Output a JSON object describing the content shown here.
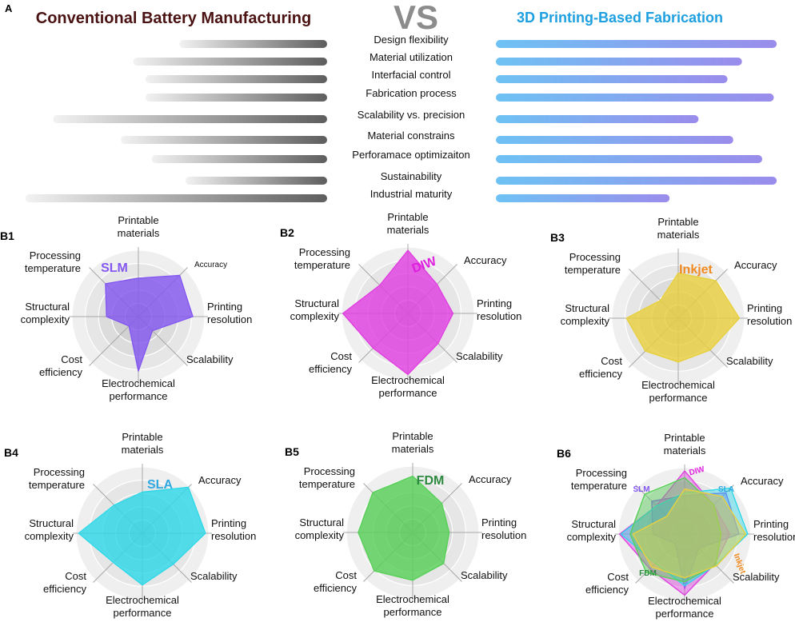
{
  "colors": {
    "left_title": "#4a1212",
    "vs": "#8c8c8c",
    "right_title": "#1ea0e0",
    "SLM": "#8458f0",
    "DIW": "#e040e0",
    "Inkjet": "#e8d040",
    "SLA": "#30d8e8",
    "FDM": "#58d058",
    "SLM_label": "#8458f0",
    "DIW_label": "#e020e0",
    "Inkjet_label": "#f08a20",
    "SLA_label": "#30a8e0",
    "FDM_label": "#2e8a40"
  },
  "header": {
    "panel_label": "A",
    "left_title": "Conventional Battery Manufacturing",
    "vs": "VS",
    "right_title": "3D Printing-Based Fabrication"
  },
  "chart_data": [
    {
      "id": "A",
      "type": "bar",
      "categories": [
        "Design flexibility",
        "Material utilization",
        "Interfacial control",
        "Fabrication process",
        "Scalability vs. precision",
        "Material constrains",
        "Perforamace optimizaiton",
        "Sustainability",
        "Industrial maturity"
      ],
      "series": [
        {
          "values": [
            0.48,
            0.63,
            0.59,
            0.59,
            0.89,
            0.67,
            0.57,
            0.46,
            0.98
          ]
        },
        {
          "values": [
            0.97,
            0.85,
            0.8,
            0.96,
            0.7,
            0.82,
            0.92,
            0.97,
            0.6
          ]
        }
      ]
    },
    {
      "id": "B1",
      "type": "radar",
      "panel_label": "B1",
      "axes": [
        "Printable materials",
        "Accuracy",
        "Printing resolution",
        "Scalability",
        "Electrochemical performance",
        "Cost efficiency",
        "Structural complexity",
        "Processing temperature"
      ],
      "series": [
        {
          "name": "SLM",
          "values": [
            0.58,
            0.88,
            0.82,
            0.3,
            0.82,
            0.2,
            0.48,
            0.7
          ]
        }
      ]
    },
    {
      "id": "B2",
      "type": "radar",
      "panel_label": "B2",
      "axes": [
        "Printable materials",
        "Accuracy",
        "Printing resolution",
        "Scalability",
        "Electrochemical performance",
        "Cost efficiency",
        "Structural complexity",
        "Processing temperature"
      ],
      "series": [
        {
          "name": "DIW",
          "values": [
            0.95,
            0.62,
            0.68,
            0.64,
            0.92,
            0.74,
            0.98,
            0.6
          ]
        }
      ]
    },
    {
      "id": "B3",
      "type": "radar",
      "panel_label": "B3",
      "axes": [
        "Printable materials",
        "Accuracy",
        "Printing resolution",
        "Scalability",
        "Electrochemical performance",
        "Cost efficiency",
        "Structural complexity",
        "Processing temperature"
      ],
      "series": [
        {
          "name": "Inkjet",
          "values": [
            0.68,
            0.8,
            0.92,
            0.68,
            0.66,
            0.7,
            0.78,
            0.38
          ]
        }
      ]
    },
    {
      "id": "B4",
      "type": "radar",
      "panel_label": "B4",
      "axes": [
        "Printable materials",
        "Accuracy",
        "Printing resolution",
        "Scalability",
        "Electrochemical performance",
        "Cost efficiency",
        "Structural complexity",
        "Processing temperature"
      ],
      "series": [
        {
          "name": "SLA",
          "values": [
            0.62,
            0.98,
            0.95,
            0.66,
            0.78,
            0.62,
            0.96,
            0.6
          ]
        }
      ]
    },
    {
      "id": "B5",
      "type": "radar",
      "panel_label": "B5",
      "axes": [
        "Printable materials",
        "Accuracy",
        "Printing resolution",
        "Scalability",
        "Electrochemical performance",
        "Cost efficiency",
        "Structural complexity",
        "Processing temperature"
      ],
      "series": [
        {
          "name": "FDM",
          "values": [
            0.85,
            0.62,
            0.55,
            0.66,
            0.72,
            0.82,
            0.82,
            0.85
          ]
        }
      ]
    },
    {
      "id": "B6",
      "type": "radar",
      "panel_label": "B6",
      "axes": [
        "Printable materials",
        "Accuracy",
        "Printing resolution",
        "Scalability",
        "Electrochemical performance",
        "Cost efficiency",
        "Structural complexity",
        "Processing temperature"
      ],
      "series": [
        {
          "name": "SLM",
          "values": [
            0.58,
            0.88,
            0.82,
            0.3,
            0.82,
            0.2,
            0.48,
            0.7
          ]
        },
        {
          "name": "DIW",
          "values": [
            0.95,
            0.62,
            0.68,
            0.64,
            0.92,
            0.74,
            0.98,
            0.6
          ]
        },
        {
          "name": "SLA",
          "values": [
            0.62,
            0.98,
            0.95,
            0.66,
            0.78,
            0.62,
            0.96,
            0.6
          ]
        },
        {
          "name": "FDM",
          "values": [
            0.85,
            0.62,
            0.55,
            0.66,
            0.72,
            0.82,
            0.82,
            0.85
          ]
        },
        {
          "name": "Inkjet",
          "values": [
            0.68,
            0.8,
            0.92,
            0.68,
            0.66,
            0.7,
            0.78,
            0.38
          ]
        }
      ]
    }
  ]
}
